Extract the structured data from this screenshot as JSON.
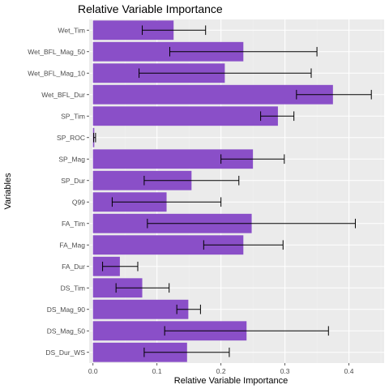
{
  "chart_data": {
    "type": "bar",
    "orientation": "horizontal",
    "title": "Relative Variable Importance",
    "xlabel": "Relative Variable Importance",
    "ylabel": "Variables",
    "xlim": [
      -0.006,
      0.455
    ],
    "xticks": [
      0.0,
      0.1,
      0.2,
      0.3,
      0.4
    ],
    "xtick_labels": [
      "0.0",
      "0.1",
      "0.2",
      "0.3",
      "0.4"
    ],
    "grid": true,
    "bar_color": "#8a4fc8",
    "panel_color": "#ebebeb",
    "categories": [
      "Wet_Tim",
      "Wet_BFL_Mag_50",
      "Wet_BFL_Mag_10",
      "Wet_BFL_Dur",
      "SP_Tim",
      "SP_ROC",
      "SP_Mag",
      "SP_Dur",
      "Q99",
      "FA_Tim",
      "FA_Mag",
      "FA_Dur",
      "DS_Tim",
      "DS_Mag_90",
      "DS_Mag_50",
      "DS_Dur_WS"
    ],
    "values": [
      0.126,
      0.235,
      0.206,
      0.375,
      0.289,
      0.002,
      0.25,
      0.154,
      0.115,
      0.248,
      0.235,
      0.042,
      0.077,
      0.149,
      0.24,
      0.147
    ],
    "err_low": [
      0.077,
      0.12,
      0.072,
      0.318,
      0.262,
      0.001,
      0.2,
      0.08,
      0.03,
      0.085,
      0.173,
      0.015,
      0.036,
      0.131,
      0.112,
      0.08
    ],
    "err_high": [
      0.176,
      0.35,
      0.341,
      0.435,
      0.314,
      0.004,
      0.299,
      0.228,
      0.2,
      0.41,
      0.297,
      0.07,
      0.119,
      0.168,
      0.368,
      0.213
    ]
  }
}
